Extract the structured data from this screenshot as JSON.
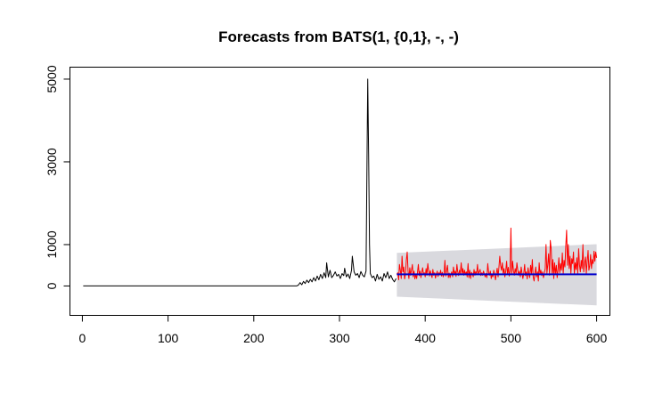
{
  "chart_data": {
    "type": "line",
    "title": "Forecasts from BATS(1, {0,1}, -, -)",
    "xlabel": "",
    "ylabel": "",
    "xlim": [
      -15,
      615
    ],
    "ylim": [
      -700,
      5300
    ],
    "x_ticks": [
      0,
      100,
      200,
      300,
      400,
      500,
      600
    ],
    "y_ticks": [
      0,
      1000,
      3000,
      5000
    ],
    "grid": false,
    "legend": "none",
    "colors": {
      "history": "#000000",
      "forecast_mean": "#0000cc",
      "observed": "#ff0000",
      "prediction_interval": "#d9d9de"
    },
    "series": [
      {
        "values": [
          [
            1,
            0
          ],
          [
            250,
            0
          ],
          [
            252,
            20
          ],
          [
            254,
            80
          ],
          [
            256,
            30
          ],
          [
            258,
            110
          ],
          [
            260,
            60
          ],
          [
            262,
            140
          ],
          [
            264,
            80
          ],
          [
            266,
            160
          ],
          [
            268,
            100
          ],
          [
            270,
            200
          ],
          [
            272,
            120
          ],
          [
            274,
            240
          ],
          [
            276,
            150
          ],
          [
            278,
            280
          ],
          [
            280,
            180
          ],
          [
            282,
            320
          ],
          [
            284,
            200
          ],
          [
            285,
            560
          ],
          [
            287,
            220
          ],
          [
            289,
            380
          ],
          [
            291,
            200
          ],
          [
            293,
            260
          ],
          [
            295,
            340
          ],
          [
            297,
            240
          ],
          [
            299,
            280
          ],
          [
            301,
            180
          ],
          [
            303,
            300
          ],
          [
            305,
            250
          ],
          [
            306,
            430
          ],
          [
            308,
            220
          ],
          [
            310,
            290
          ],
          [
            312,
            180
          ],
          [
            314,
            380
          ],
          [
            315,
            720
          ],
          [
            317,
            340
          ],
          [
            319,
            260
          ],
          [
            321,
            300
          ],
          [
            323,
            200
          ],
          [
            325,
            350
          ],
          [
            327,
            260
          ],
          [
            329,
            220
          ],
          [
            331,
            360
          ],
          [
            332,
            2800
          ],
          [
            333,
            5000
          ],
          [
            334,
            3200
          ],
          [
            335,
            1000
          ],
          [
            336,
            300
          ],
          [
            338,
            200
          ],
          [
            340,
            240
          ],
          [
            342,
            120
          ],
          [
            344,
            280
          ],
          [
            346,
            160
          ],
          [
            348,
            220
          ],
          [
            350,
            120
          ],
          [
            352,
            300
          ],
          [
            354,
            200
          ],
          [
            356,
            340
          ],
          [
            358,
            180
          ],
          [
            360,
            260
          ],
          [
            362,
            160
          ],
          [
            364,
            100
          ],
          [
            366,
            180
          ]
        ]
      },
      {
        "values": [
          [
            367,
            280
          ],
          [
            368,
            320
          ],
          [
            369,
            150
          ],
          [
            370,
            520
          ],
          [
            371,
            380
          ],
          [
            372,
            180
          ],
          [
            373,
            720
          ],
          [
            374,
            340
          ],
          [
            375,
            460
          ],
          [
            376,
            170
          ],
          [
            377,
            300
          ],
          [
            378,
            620
          ],
          [
            379,
            820
          ],
          [
            380,
            340
          ],
          [
            381,
            180
          ],
          [
            382,
            440
          ],
          [
            383,
            260
          ],
          [
            384,
            380
          ],
          [
            385,
            520
          ],
          [
            386,
            220
          ],
          [
            387,
            360
          ],
          [
            388,
            170
          ],
          [
            389,
            280
          ],
          [
            390,
            180
          ],
          [
            391,
            320
          ],
          [
            392,
            520
          ],
          [
            393,
            250
          ],
          [
            394,
            360
          ],
          [
            395,
            200
          ],
          [
            396,
            320
          ],
          [
            397,
            440
          ],
          [
            398,
            280
          ],
          [
            399,
            320
          ],
          [
            400,
            220
          ],
          [
            401,
            420
          ],
          [
            402,
            260
          ],
          [
            403,
            540
          ],
          [
            404,
            380
          ],
          [
            405,
            240
          ],
          [
            406,
            370
          ],
          [
            407,
            280
          ],
          [
            408,
            200
          ],
          [
            409,
            400
          ],
          [
            410,
            260
          ],
          [
            411,
            320
          ],
          [
            412,
            190
          ],
          [
            413,
            280
          ],
          [
            414,
            360
          ],
          [
            415,
            230
          ],
          [
            416,
            320
          ],
          [
            417,
            270
          ],
          [
            418,
            380
          ],
          [
            419,
            240
          ],
          [
            420,
            330
          ],
          [
            421,
            220
          ],
          [
            422,
            300
          ],
          [
            423,
            620
          ],
          [
            424,
            240
          ],
          [
            425,
            380
          ],
          [
            426,
            500
          ],
          [
            427,
            200
          ],
          [
            428,
            310
          ],
          [
            429,
            200
          ],
          [
            430,
            280
          ],
          [
            431,
            340
          ],
          [
            432,
            220
          ],
          [
            433,
            460
          ],
          [
            434,
            280
          ],
          [
            435,
            360
          ],
          [
            436,
            230
          ],
          [
            437,
            520
          ],
          [
            438,
            340
          ],
          [
            439,
            250
          ],
          [
            440,
            380
          ],
          [
            441,
            300
          ],
          [
            442,
            560
          ],
          [
            443,
            300
          ],
          [
            444,
            420
          ],
          [
            445,
            260
          ],
          [
            446,
            380
          ],
          [
            447,
            270
          ],
          [
            448,
            340
          ],
          [
            449,
            220
          ],
          [
            450,
            540
          ],
          [
            451,
            200
          ],
          [
            452,
            380
          ],
          [
            453,
            180
          ],
          [
            454,
            330
          ],
          [
            455,
            300
          ],
          [
            456,
            220
          ],
          [
            457,
            400
          ],
          [
            458,
            260
          ],
          [
            459,
            350
          ],
          [
            460,
            300
          ],
          [
            461,
            520
          ],
          [
            462,
            280
          ],
          [
            463,
            340
          ],
          [
            464,
            400
          ],
          [
            465,
            250
          ],
          [
            466,
            320
          ],
          [
            467,
            260
          ],
          [
            468,
            360
          ],
          [
            469,
            290
          ],
          [
            470,
            220
          ],
          [
            471,
            300
          ],
          [
            472,
            200
          ],
          [
            473,
            540
          ],
          [
            474,
            320
          ],
          [
            475,
            260
          ],
          [
            476,
            360
          ],
          [
            477,
            180
          ],
          [
            478,
            280
          ],
          [
            479,
            220
          ],
          [
            480,
            380
          ],
          [
            481,
            280
          ],
          [
            482,
            150
          ],
          [
            483,
            300
          ],
          [
            484,
            430
          ],
          [
            485,
            220
          ],
          [
            486,
            440
          ],
          [
            487,
            720
          ],
          [
            488,
            500
          ],
          [
            489,
            380
          ],
          [
            490,
            560
          ],
          [
            491,
            300
          ],
          [
            492,
            420
          ],
          [
            493,
            220
          ],
          [
            494,
            360
          ],
          [
            495,
            600
          ],
          [
            496,
            280
          ],
          [
            497,
            450
          ],
          [
            498,
            240
          ],
          [
            499,
            360
          ],
          [
            500,
            1400
          ],
          [
            501,
            280
          ],
          [
            502,
            600
          ],
          [
            503,
            360
          ],
          [
            504,
            260
          ],
          [
            505,
            420
          ],
          [
            506,
            300
          ],
          [
            507,
            560
          ],
          [
            508,
            380
          ],
          [
            509,
            260
          ],
          [
            510,
            360
          ],
          [
            511,
            220
          ],
          [
            512,
            460
          ],
          [
            513,
            300
          ],
          [
            514,
            180
          ],
          [
            515,
            300
          ],
          [
            516,
            520
          ],
          [
            517,
            250
          ],
          [
            518,
            340
          ],
          [
            519,
            170
          ],
          [
            520,
            440
          ],
          [
            521,
            280
          ],
          [
            522,
            200
          ],
          [
            523,
            500
          ],
          [
            524,
            300
          ],
          [
            525,
            640
          ],
          [
            526,
            220
          ],
          [
            527,
            120
          ],
          [
            528,
            300
          ],
          [
            529,
            460
          ],
          [
            530,
            220
          ],
          [
            531,
            340
          ],
          [
            532,
            120
          ],
          [
            533,
            560
          ],
          [
            534,
            280
          ],
          [
            535,
            380
          ],
          [
            536,
            250
          ],
          [
            537,
            340
          ],
          [
            538,
            200
          ],
          [
            539,
            300
          ],
          [
            540,
            420
          ],
          [
            541,
            1000
          ],
          [
            542,
            300
          ],
          [
            543,
            500
          ],
          [
            544,
            780
          ],
          [
            545,
            260
          ],
          [
            546,
            1100
          ],
          [
            547,
            900
          ],
          [
            548,
            300
          ],
          [
            549,
            640
          ],
          [
            550,
            180
          ],
          [
            551,
            560
          ],
          [
            552,
            300
          ],
          [
            553,
            500
          ],
          [
            554,
            200
          ],
          [
            555,
            400
          ],
          [
            556,
            680
          ],
          [
            557,
            320
          ],
          [
            558,
            540
          ],
          [
            559,
            380
          ],
          [
            560,
            800
          ],
          [
            561,
            300
          ],
          [
            562,
            620
          ],
          [
            563,
            460
          ],
          [
            564,
            940
          ],
          [
            565,
            1350
          ],
          [
            566,
            500
          ],
          [
            567,
            1000
          ],
          [
            568,
            420
          ],
          [
            569,
            720
          ],
          [
            570,
            300
          ],
          [
            571,
            660
          ],
          [
            572,
            540
          ],
          [
            573,
            820
          ],
          [
            574,
            280
          ],
          [
            575,
            560
          ],
          [
            576,
            400
          ],
          [
            577,
            680
          ],
          [
            578,
            300
          ],
          [
            579,
            900
          ],
          [
            580,
            520
          ],
          [
            581,
            340
          ],
          [
            582,
            620
          ],
          [
            583,
            420
          ],
          [
            584,
            1000
          ],
          [
            585,
            340
          ],
          [
            586,
            560
          ],
          [
            587,
            700
          ],
          [
            588,
            300
          ],
          [
            589,
            600
          ],
          [
            590,
            860
          ],
          [
            591,
            380
          ],
          [
            592,
            500
          ],
          [
            593,
            760
          ],
          [
            594,
            420
          ],
          [
            595,
            640
          ],
          [
            596,
            540
          ],
          [
            597,
            840
          ],
          [
            598,
            600
          ],
          [
            599,
            820
          ],
          [
            600,
            680
          ]
        ]
      },
      {
        "type": "forecast_mean",
        "values": [
          [
            367,
            280
          ],
          [
            600,
            280
          ]
        ]
      },
      {
        "type": "prediction_interval",
        "values": [
          {
            "x": 367,
            "lower": -260,
            "upper": 800
          },
          {
            "x": 600,
            "lower": -470,
            "upper": 1010
          }
        ]
      }
    ]
  }
}
